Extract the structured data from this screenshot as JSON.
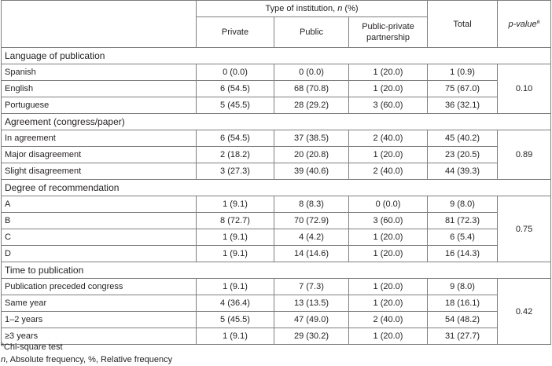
{
  "header": {
    "group_label_prefix": "Type of institution, ",
    "group_label_n": "n",
    "group_label_suffix": " (%)",
    "columns": [
      "Private",
      "Public",
      "Public-private partnership",
      "Total"
    ],
    "pvalue_label": "p-value",
    "pvalue_sup": "a"
  },
  "sections": [
    {
      "title": "Language of publication",
      "p_value": "0.10",
      "rows": [
        {
          "label": "Spanish",
          "values": [
            "0 (0.0)",
            "0 (0.0)",
            "1 (20.0)",
            "1 (0.9)"
          ]
        },
        {
          "label": "English",
          "values": [
            "6 (54.5)",
            "68 (70.8)",
            "1 (20.0)",
            "75 (67.0)"
          ]
        },
        {
          "label": "Portuguese",
          "values": [
            "5 (45.5)",
            "28 (29.2)",
            "3 (60.0)",
            "36 (32.1)"
          ]
        }
      ]
    },
    {
      "title": "Agreement (congress/paper)",
      "p_value": "0.89",
      "rows": [
        {
          "label": "In agreement",
          "values": [
            "6 (54.5)",
            "37 (38.5)",
            "2 (40.0)",
            "45 (40.2)"
          ]
        },
        {
          "label": "Major disagreement",
          "values": [
            "2 (18.2)",
            "20 (20.8)",
            "1 (20.0)",
            "23 (20.5)"
          ]
        },
        {
          "label": "Slight disagreement",
          "values": [
            "3 (27.3)",
            "39 (40.6)",
            "2 (40.0)",
            "44 (39.3)"
          ]
        }
      ]
    },
    {
      "title": "Degree of recommendation",
      "p_value": "0.75",
      "rows": [
        {
          "label": "A",
          "values": [
            "1 (9.1)",
            "8 (8.3)",
            "0 (0.0)",
            "9 (8.0)"
          ]
        },
        {
          "label": "B",
          "values": [
            "8 (72.7)",
            "70 (72.9)",
            "3 (60.0)",
            "81 (72.3)"
          ]
        },
        {
          "label": "C",
          "values": [
            "1 (9.1)",
            "4 (4.2)",
            "1 (20.0)",
            "6 (5.4)"
          ]
        },
        {
          "label": "D",
          "values": [
            "1 (9.1)",
            "14 (14.6)",
            "1 (20.0)",
            "16 (14.3)"
          ]
        }
      ]
    },
    {
      "title": "Time to publication",
      "p_value": "0.42",
      "rows": [
        {
          "label": "Publication preceded congress",
          "values": [
            "1 (9.1)",
            "7 (7.3)",
            "1 (20.0)",
            "9 (8.0)"
          ]
        },
        {
          "label": "Same year",
          "values": [
            "4 (36.4)",
            "13 (13.5)",
            "1 (20.0)",
            "18 (16.1)"
          ]
        },
        {
          "label": "1–2 years",
          "values": [
            "5 (45.5)",
            "47 (49.0)",
            "2 (40.0)",
            "54 (48.2)"
          ]
        },
        {
          "label": "≥3 years",
          "values": [
            "1 (9.1)",
            "29 (30.2)",
            "1 (20.0)",
            "31 (27.7)"
          ]
        }
      ]
    }
  ],
  "footnotes": {
    "sup": "a",
    "chi": "Chi-square test",
    "n_italic": "n",
    "abbrev": ", Absolute frequency, %, Relative frequency"
  }
}
